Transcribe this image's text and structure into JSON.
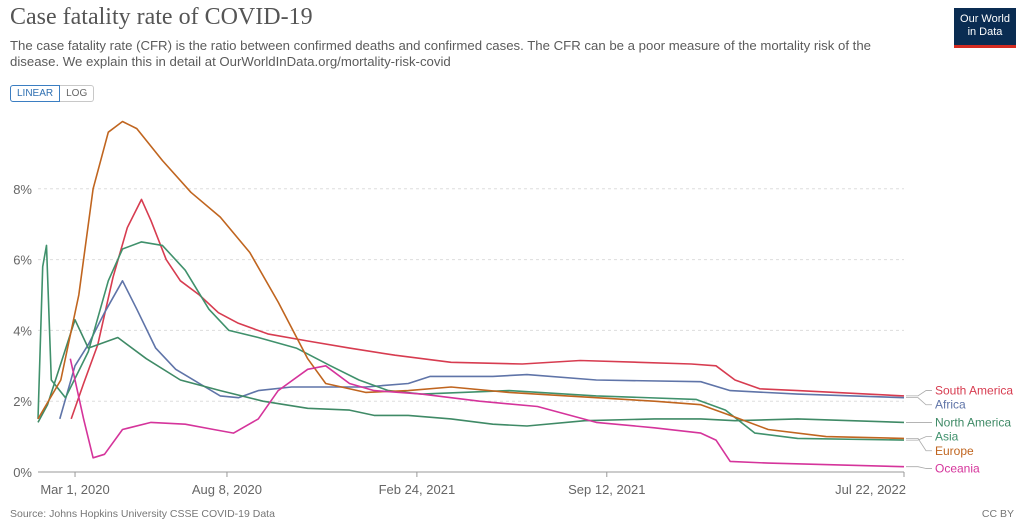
{
  "header": {
    "title": "Case fatality rate of COVID-19",
    "subtitle": "The case fatality rate (CFR) is the ratio between confirmed deaths and confirmed cases. The CFR can be a poor measure of the mortality risk of the disease. We explain this in detail at OurWorldInData.org/mortality-risk-covid",
    "logo_line1": "Our World",
    "logo_line2": "in Data"
  },
  "toggle": {
    "linear": "LINEAR",
    "log": "LOG",
    "selected": "LINEAR"
  },
  "footer": {
    "source": "Source: Johns Hopkins University CSSE COVID-19 Data",
    "license": "CC BY"
  },
  "colors": {
    "south_america": "#d73c50",
    "africa": "#5f74a8",
    "north_america": "#3f8a66",
    "asia": "#40916c",
    "europe": "#c0651f",
    "oceania": "#d5349b",
    "accent": "#3b7ec2"
  },
  "chart_data": {
    "type": "line",
    "title": "Case fatality rate of COVID-19",
    "xlabel": "",
    "ylabel": "",
    "x_ticks": [
      "Mar 1, 2020",
      "Aug 8, 2020",
      "Feb 24, 2021",
      "Sep 12, 2021",
      "Jul 22, 2022"
    ],
    "y_ticks": [
      "0%",
      "2%",
      "4%",
      "6%",
      "8%"
    ],
    "x_range": [
      "2020-01-22",
      "2022-07-22"
    ],
    "ylim": [
      0,
      10
    ],
    "grid": "horizontal dashed",
    "legend": "right-end labels",
    "series": [
      {
        "name": "South America",
        "color_key": "south_america",
        "points": [
          [
            "2020-02-26",
            1.5
          ],
          [
            "2020-03-10",
            2.5
          ],
          [
            "2020-03-25",
            3.6
          ],
          [
            "2020-04-10",
            5.5
          ],
          [
            "2020-04-25",
            6.9
          ],
          [
            "2020-05-10",
            7.7
          ],
          [
            "2020-05-20",
            7.1
          ],
          [
            "2020-06-05",
            6.0
          ],
          [
            "2020-06-20",
            5.4
          ],
          [
            "2020-07-10",
            5.0
          ],
          [
            "2020-07-30",
            4.5
          ],
          [
            "2020-08-20",
            4.2
          ],
          [
            "2020-09-20",
            3.9
          ],
          [
            "2020-11-01",
            3.7
          ],
          [
            "2020-12-15",
            3.5
          ],
          [
            "2021-02-01",
            3.3
          ],
          [
            "2021-04-01",
            3.1
          ],
          [
            "2021-06-15",
            3.05
          ],
          [
            "2021-08-15",
            3.15
          ],
          [
            "2021-10-15",
            3.1
          ],
          [
            "2021-12-10",
            3.05
          ],
          [
            "2022-01-05",
            3.0
          ],
          [
            "2022-01-25",
            2.6
          ],
          [
            "2022-02-20",
            2.35
          ],
          [
            "2022-04-01",
            2.3
          ],
          [
            "2022-07-22",
            2.15
          ]
        ]
      },
      {
        "name": "Africa",
        "color_key": "africa",
        "points": [
          [
            "2020-02-14",
            1.5
          ],
          [
            "2020-03-01",
            3.0
          ],
          [
            "2020-03-15",
            3.6
          ],
          [
            "2020-04-01",
            4.5
          ],
          [
            "2020-04-20",
            5.4
          ],
          [
            "2020-05-05",
            4.6
          ],
          [
            "2020-05-25",
            3.5
          ],
          [
            "2020-06-15",
            2.9
          ],
          [
            "2020-07-10",
            2.5
          ],
          [
            "2020-08-01",
            2.15
          ],
          [
            "2020-08-20",
            2.1
          ],
          [
            "2020-09-10",
            2.3
          ],
          [
            "2020-10-15",
            2.4
          ],
          [
            "2021-01-01",
            2.4
          ],
          [
            "2021-02-15",
            2.5
          ],
          [
            "2021-03-10",
            2.7
          ],
          [
            "2021-05-15",
            2.7
          ],
          [
            "2021-06-20",
            2.75
          ],
          [
            "2021-09-01",
            2.6
          ],
          [
            "2021-12-20",
            2.55
          ],
          [
            "2022-01-20",
            2.3
          ],
          [
            "2022-04-01",
            2.2
          ],
          [
            "2022-07-22",
            2.1
          ]
        ]
      },
      {
        "name": "North America",
        "color_key": "north_america",
        "points": [
          [
            "2020-01-22",
            1.4
          ],
          [
            "2020-02-01",
            1.9
          ],
          [
            "2020-03-01",
            4.3
          ],
          [
            "2020-03-15",
            3.5
          ],
          [
            "2020-04-15",
            3.8
          ],
          [
            "2020-05-15",
            3.2
          ],
          [
            "2020-06-20",
            2.6
          ],
          [
            "2020-08-01",
            2.3
          ],
          [
            "2020-09-15",
            2.0
          ],
          [
            "2020-11-01",
            1.8
          ],
          [
            "2020-12-15",
            1.75
          ],
          [
            "2021-01-10",
            1.6
          ],
          [
            "2021-02-15",
            1.6
          ],
          [
            "2021-04-01",
            1.5
          ],
          [
            "2021-05-15",
            1.35
          ],
          [
            "2021-06-20",
            1.3
          ],
          [
            "2021-08-20",
            1.45
          ],
          [
            "2021-11-01",
            1.5
          ],
          [
            "2021-12-20",
            1.5
          ],
          [
            "2022-01-25",
            1.45
          ],
          [
            "2022-04-01",
            1.5
          ],
          [
            "2022-07-22",
            1.4
          ]
        ]
      },
      {
        "name": "Asia",
        "color_key": "asia",
        "points": [
          [
            "2020-01-22",
            1.5
          ],
          [
            "2020-01-27",
            5.8
          ],
          [
            "2020-01-31",
            6.4
          ],
          [
            "2020-02-05",
            2.6
          ],
          [
            "2020-02-20",
            2.1
          ],
          [
            "2020-03-15",
            3.4
          ],
          [
            "2020-04-05",
            5.4
          ],
          [
            "2020-04-20",
            6.3
          ],
          [
            "2020-05-10",
            6.5
          ],
          [
            "2020-06-01",
            6.4
          ],
          [
            "2020-06-25",
            5.7
          ],
          [
            "2020-07-20",
            4.6
          ],
          [
            "2020-08-10",
            4.0
          ],
          [
            "2020-09-10",
            3.8
          ],
          [
            "2020-10-20",
            3.5
          ],
          [
            "2020-11-25",
            3.0
          ],
          [
            "2020-12-25",
            2.6
          ],
          [
            "2021-01-25",
            2.3
          ],
          [
            "2021-03-01",
            2.2
          ],
          [
            "2021-06-01",
            2.3
          ],
          [
            "2021-09-01",
            2.15
          ],
          [
            "2021-12-15",
            2.05
          ],
          [
            "2022-01-15",
            1.75
          ],
          [
            "2022-02-15",
            1.1
          ],
          [
            "2022-04-01",
            0.95
          ],
          [
            "2022-07-22",
            0.9
          ]
        ]
      },
      {
        "name": "Europe",
        "color_key": "europe",
        "points": [
          [
            "2020-01-22",
            1.5
          ],
          [
            "2020-02-15",
            2.6
          ],
          [
            "2020-03-05",
            5.0
          ],
          [
            "2020-03-20",
            8.0
          ],
          [
            "2020-04-05",
            9.6
          ],
          [
            "2020-04-20",
            9.9
          ],
          [
            "2020-05-05",
            9.7
          ],
          [
            "2020-06-01",
            8.8
          ],
          [
            "2020-07-01",
            7.9
          ],
          [
            "2020-08-01",
            7.2
          ],
          [
            "2020-09-01",
            6.2
          ],
          [
            "2020-10-01",
            4.8
          ],
          [
            "2020-11-01",
            3.2
          ],
          [
            "2020-11-20",
            2.5
          ],
          [
            "2021-01-01",
            2.25
          ],
          [
            "2021-02-15",
            2.3
          ],
          [
            "2021-04-01",
            2.4
          ],
          [
            "2021-06-01",
            2.25
          ],
          [
            "2021-08-01",
            2.15
          ],
          [
            "2021-11-01",
            2.0
          ],
          [
            "2021-12-20",
            1.9
          ],
          [
            "2022-01-25",
            1.55
          ],
          [
            "2022-03-01",
            1.2
          ],
          [
            "2022-05-01",
            1.0
          ],
          [
            "2022-07-22",
            0.95
          ]
        ]
      },
      {
        "name": "Oceania",
        "color_key": "oceania",
        "points": [
          [
            "2020-02-25",
            3.2
          ],
          [
            "2020-03-10",
            1.5
          ],
          [
            "2020-03-20",
            0.4
          ],
          [
            "2020-04-01",
            0.5
          ],
          [
            "2020-04-20",
            1.2
          ],
          [
            "2020-05-20",
            1.4
          ],
          [
            "2020-06-25",
            1.35
          ],
          [
            "2020-07-25",
            1.2
          ],
          [
            "2020-08-15",
            1.1
          ],
          [
            "2020-09-10",
            1.5
          ],
          [
            "2020-10-01",
            2.3
          ],
          [
            "2020-11-01",
            2.9
          ],
          [
            "2020-11-20",
            3.0
          ],
          [
            "2020-12-15",
            2.5
          ],
          [
            "2021-01-10",
            2.3
          ],
          [
            "2021-03-01",
            2.2
          ],
          [
            "2021-05-01",
            2.0
          ],
          [
            "2021-07-01",
            1.85
          ],
          [
            "2021-09-01",
            1.4
          ],
          [
            "2021-11-01",
            1.25
          ],
          [
            "2021-12-20",
            1.1
          ],
          [
            "2022-01-05",
            0.9
          ],
          [
            "2022-01-20",
            0.3
          ],
          [
            "2022-03-01",
            0.25
          ],
          [
            "2022-07-22",
            0.15
          ]
        ]
      }
    ],
    "end_labels": [
      {
        "name": "South America",
        "color_key": "south_america",
        "label_y": 2.3,
        "line_y": 2.15
      },
      {
        "name": "Africa",
        "color_key": "africa",
        "label_y": 1.9,
        "line_y": 2.1
      },
      {
        "name": "North America",
        "color_key": "north_america",
        "label_y": 1.4,
        "line_y": 1.4
      },
      {
        "name": "Asia",
        "color_key": "asia",
        "label_y": 1.0,
        "line_y": 0.9
      },
      {
        "name": "Europe",
        "color_key": "europe",
        "label_y": 0.6,
        "line_y": 0.95
      },
      {
        "name": "Oceania",
        "color_key": "oceania",
        "label_y": 0.1,
        "line_y": 0.15
      }
    ]
  }
}
